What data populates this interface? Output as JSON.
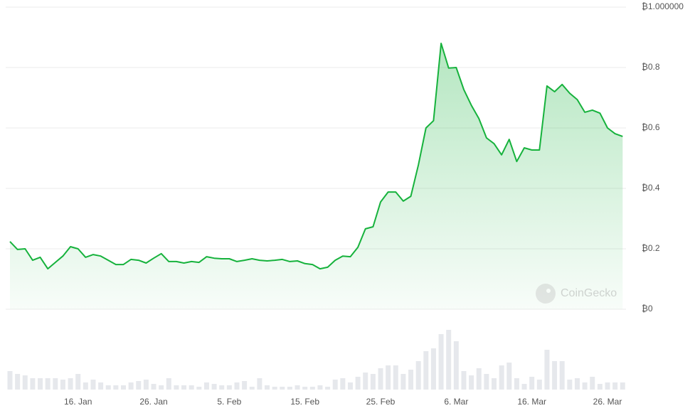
{
  "chart_data": [
    {
      "type": "area",
      "categories": [
        null,
        null,
        null,
        null,
        null,
        null,
        null,
        null,
        null,
        "16. Jan",
        null,
        null,
        null,
        null,
        null,
        null,
        null,
        null,
        null,
        "26. Jan",
        null,
        null,
        null,
        null,
        null,
        null,
        null,
        null,
        null,
        "5. Feb",
        null,
        null,
        null,
        null,
        null,
        null,
        null,
        null,
        null,
        "15. Feb",
        null,
        null,
        null,
        null,
        null,
        null,
        null,
        null,
        null,
        "25. Feb",
        null,
        null,
        null,
        null,
        null,
        null,
        null,
        null,
        null,
        "6. Mar",
        null,
        null,
        null,
        null,
        null,
        null,
        null,
        null,
        null,
        "16. Mar",
        null,
        null,
        null,
        null,
        null,
        null,
        null,
        null,
        null,
        "26. Mar",
        null,
        null
      ],
      "values": [
        0.224,
        0.198,
        0.2,
        0.162,
        0.172,
        0.134,
        0.155,
        0.176,
        0.207,
        0.2,
        0.172,
        0.181,
        0.176,
        0.162,
        0.148,
        0.148,
        0.165,
        0.162,
        0.153,
        0.169,
        0.184,
        0.158,
        0.158,
        0.153,
        0.158,
        0.155,
        0.174,
        0.169,
        0.167,
        0.167,
        0.158,
        0.162,
        0.167,
        0.162,
        0.16,
        0.162,
        0.165,
        0.158,
        0.16,
        0.151,
        0.148,
        0.134,
        0.139,
        0.162,
        0.176,
        0.174,
        0.205,
        0.266,
        0.273,
        0.355,
        0.388,
        0.388,
        0.358,
        0.374,
        0.478,
        0.6,
        0.624,
        0.88,
        0.798,
        0.8,
        0.727,
        0.675,
        0.631,
        0.567,
        0.548,
        0.511,
        0.562,
        0.489,
        0.534,
        0.527,
        0.527,
        0.739,
        0.72,
        0.744,
        0.715,
        0.694,
        0.652,
        0.659,
        0.649,
        0.6,
        0.581,
        0.572
      ],
      "color": "#16b23c",
      "ylim": [
        0,
        1
      ],
      "yticks": [
        {
          "value": 0,
          "label": "₿0"
        },
        {
          "value": 0.2,
          "label": "₿0.2"
        },
        {
          "value": 0.4,
          "label": "₿0.4"
        },
        {
          "value": 0.6,
          "label": "₿0.6"
        },
        {
          "value": 0.8,
          "label": "₿0.8"
        },
        {
          "value": 1,
          "label": "₿1.000000"
        }
      ],
      "grid": true
    },
    {
      "type": "bar",
      "values": [
        26,
        22,
        20,
        16,
        16,
        16,
        16,
        14,
        16,
        22,
        10,
        14,
        10,
        6,
        6,
        6,
        10,
        12,
        14,
        8,
        6,
        16,
        6,
        6,
        6,
        4,
        10,
        8,
        6,
        6,
        10,
        12,
        4,
        16,
        6,
        4,
        4,
        4,
        6,
        4,
        4,
        6,
        4,
        14,
        16,
        10,
        18,
        24,
        22,
        30,
        34,
        34,
        22,
        28,
        40,
        54,
        58,
        78,
        84,
        68,
        26,
        20,
        30,
        22,
        16,
        34,
        38,
        16,
        8,
        18,
        14,
        56,
        40,
        40,
        14,
        16,
        10,
        18,
        8,
        10,
        10,
        10
      ],
      "color": "#e6e8ec"
    }
  ],
  "watermark": "CoinGecko"
}
